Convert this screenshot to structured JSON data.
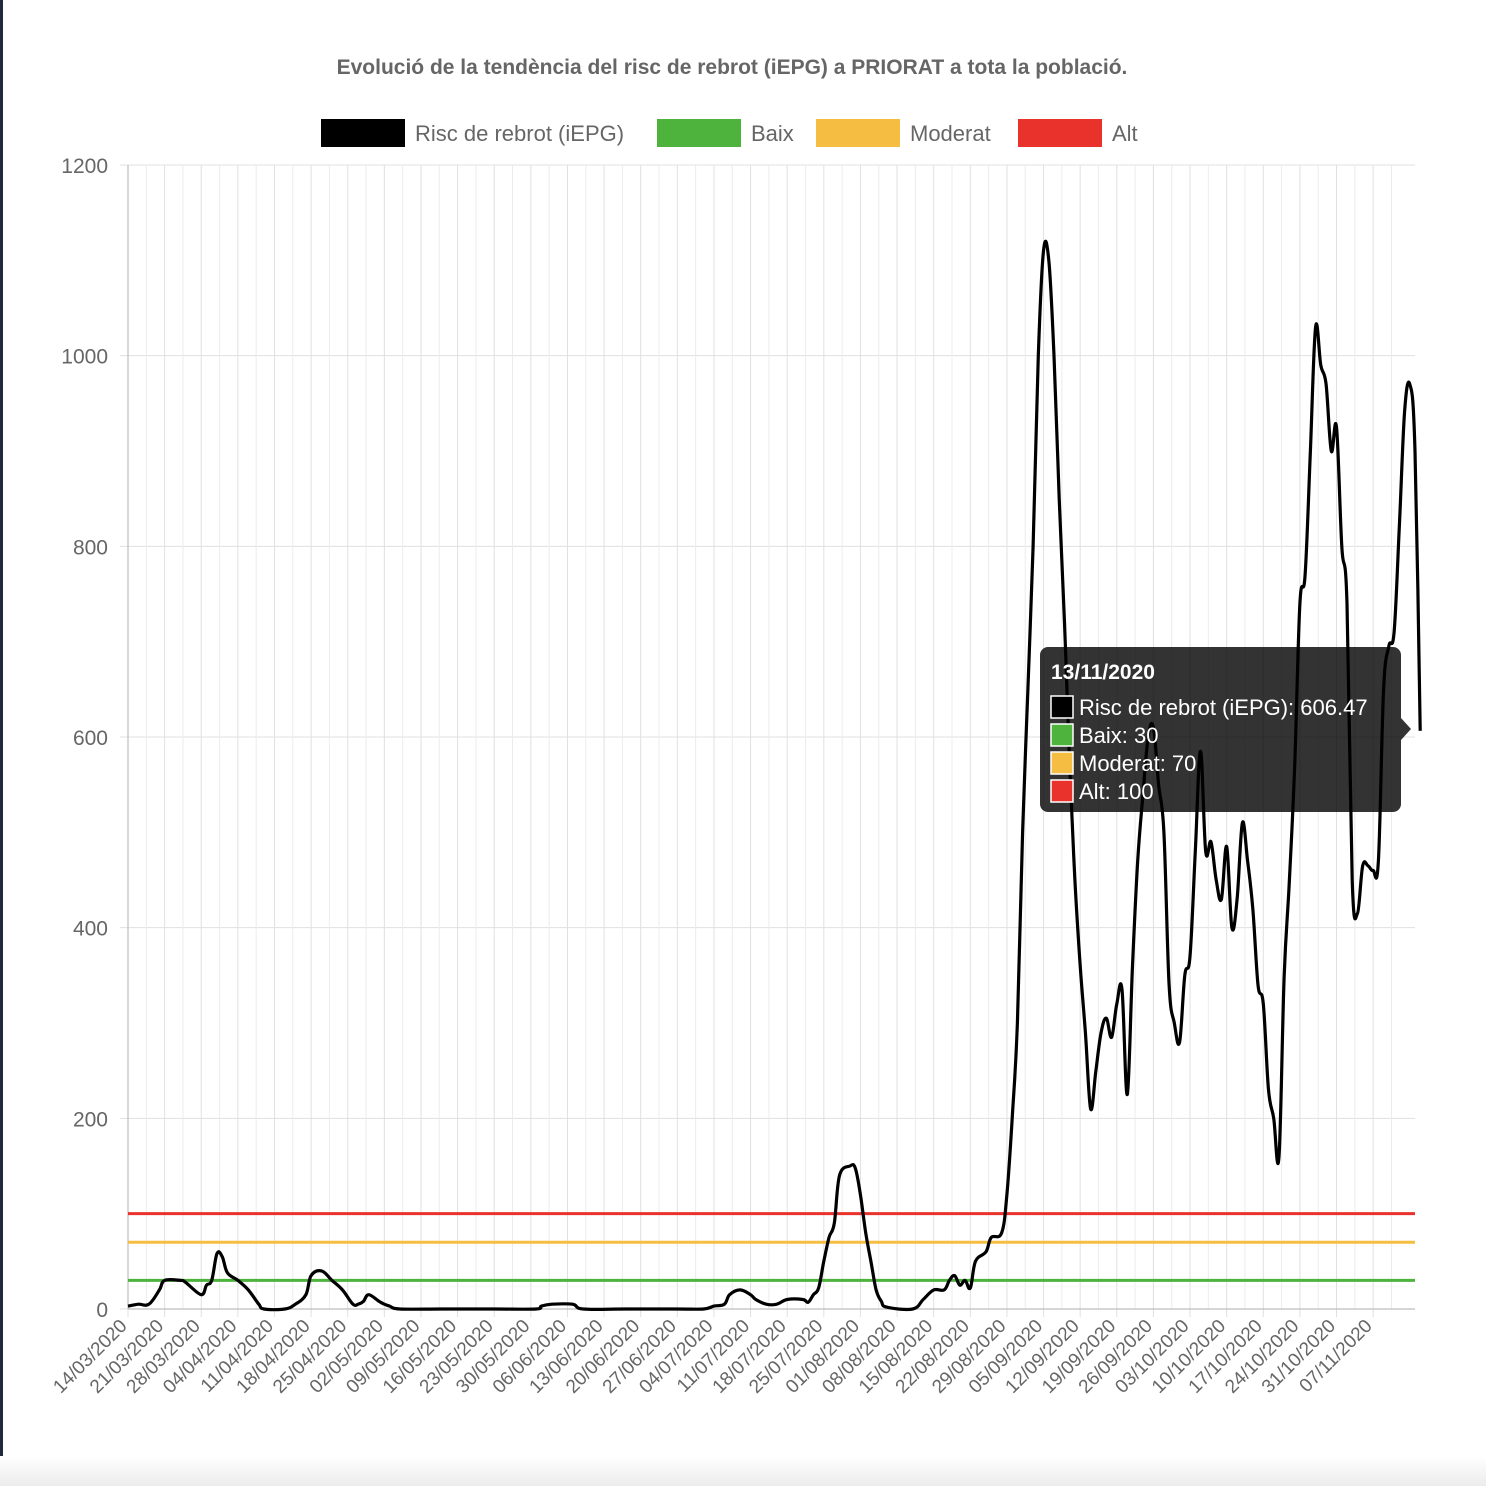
{
  "chart_data": {
    "type": "line",
    "title": "Evolució de la tendència del risc de rebrot (iEPG) a PRIORAT a tota la població.",
    "ylim": [
      0,
      1200
    ],
    "y_ticks": [
      "0",
      "200",
      "400",
      "600",
      "800",
      "1000",
      "1200"
    ],
    "x_ticks": [
      "14/03/2020",
      "21/03/2020",
      "28/03/2020",
      "04/04/2020",
      "11/04/2020",
      "18/04/2020",
      "25/04/2020",
      "02/05/2020",
      "09/05/2020",
      "16/05/2020",
      "23/05/2020",
      "30/05/2020",
      "06/06/2020",
      "13/06/2020",
      "20/06/2020",
      "27/06/2020",
      "04/07/2020",
      "11/07/2020",
      "18/07/2020",
      "25/07/2020",
      "01/08/2020",
      "08/08/2020",
      "15/08/2020",
      "22/08/2020",
      "29/08/2020",
      "05/09/2020",
      "12/09/2020",
      "19/09/2020",
      "26/09/2020",
      "03/10/2020",
      "10/10/2020",
      "17/10/2020",
      "24/10/2020",
      "31/10/2020",
      "07/11/2020"
    ],
    "num_days": 246,
    "legend": [
      {
        "label": "Risc de rebrot (iEPG)",
        "color": "#000000"
      },
      {
        "label": "Baix",
        "color": "#4db33d"
      },
      {
        "label": "Moderat",
        "color": "#f5bd41"
      },
      {
        "label": "Alt",
        "color": "#e9322b"
      }
    ],
    "thresholds": [
      {
        "name": "Baix",
        "value": 30,
        "color": "#4db33d"
      },
      {
        "name": "Moderat",
        "value": 70,
        "color": "#f5bd41"
      },
      {
        "name": "Alt",
        "value": 100,
        "color": "#e9322b"
      }
    ],
    "series": [
      {
        "name": "Risc de rebrot (iEPG)",
        "color": "#000000",
        "points": [
          [
            0,
            3
          ],
          [
            2,
            5
          ],
          [
            4,
            5
          ],
          [
            6,
            20
          ],
          [
            7,
            30
          ],
          [
            10,
            30
          ],
          [
            11,
            28
          ],
          [
            14,
            15
          ],
          [
            15,
            25
          ],
          [
            16,
            30
          ],
          [
            17,
            58
          ],
          [
            18,
            55
          ],
          [
            19,
            38
          ],
          [
            21,
            30
          ],
          [
            23,
            20
          ],
          [
            25,
            5
          ],
          [
            26,
            0
          ],
          [
            30,
            0
          ],
          [
            32,
            5
          ],
          [
            34,
            15
          ],
          [
            35,
            35
          ],
          [
            37,
            40
          ],
          [
            39,
            30
          ],
          [
            41,
            20
          ],
          [
            43,
            5
          ],
          [
            44,
            5
          ],
          [
            45,
            8
          ],
          [
            46,
            15
          ],
          [
            48,
            8
          ],
          [
            49,
            5
          ],
          [
            50,
            3
          ],
          [
            52,
            0
          ],
          [
            60,
            0
          ],
          [
            70,
            0
          ],
          [
            78,
            0
          ],
          [
            79,
            3
          ],
          [
            81,
            5
          ],
          [
            85,
            5
          ],
          [
            87,
            0
          ],
          [
            95,
            0
          ],
          [
            105,
            0
          ],
          [
            110,
            0
          ],
          [
            112,
            3
          ],
          [
            114,
            5
          ],
          [
            115,
            15
          ],
          [
            117,
            20
          ],
          [
            119,
            15
          ],
          [
            120,
            10
          ],
          [
            122,
            5
          ],
          [
            124,
            5
          ],
          [
            126,
            10
          ],
          [
            129,
            10
          ],
          [
            130,
            7
          ],
          [
            131,
            15
          ],
          [
            132,
            22
          ],
          [
            133,
            50
          ],
          [
            134,
            75
          ],
          [
            135,
            90
          ],
          [
            136,
            140
          ],
          [
            138,
            150
          ],
          [
            139,
            148
          ],
          [
            140,
            120
          ],
          [
            141,
            80
          ],
          [
            142,
            50
          ],
          [
            143,
            20
          ],
          [
            144,
            8
          ],
          [
            145,
            2
          ],
          [
            150,
            0
          ],
          [
            152,
            10
          ],
          [
            154,
            20
          ],
          [
            156,
            20
          ],
          [
            157,
            30
          ],
          [
            158,
            35
          ],
          [
            159,
            25
          ],
          [
            160,
            30
          ],
          [
            161,
            22
          ],
          [
            162,
            50
          ],
          [
            164,
            60
          ],
          [
            165,
            75
          ],
          [
            167,
            80
          ],
          [
            168,
            120
          ],
          [
            169,
            200
          ],
          [
            170,
            300
          ],
          [
            171,
            500
          ],
          [
            172,
            650
          ],
          [
            173,
            800
          ],
          [
            174,
            1000
          ],
          [
            175,
            1110
          ],
          [
            176,
            1100
          ],
          [
            177,
            1000
          ],
          [
            178,
            850
          ],
          [
            179,
            720
          ],
          [
            180,
            570
          ],
          [
            181,
            450
          ],
          [
            182,
            360
          ],
          [
            183,
            290
          ],
          [
            184,
            210
          ],
          [
            185,
            250
          ],
          [
            186,
            290
          ],
          [
            187,
            305
          ],
          [
            188,
            285
          ],
          [
            189,
            320
          ],
          [
            190,
            335
          ],
          [
            191,
            225
          ],
          [
            192,
            360
          ],
          [
            193,
            470
          ],
          [
            194,
            540
          ],
          [
            195,
            600
          ],
          [
            196,
            610
          ],
          [
            197,
            550
          ],
          [
            198,
            500
          ],
          [
            199,
            340
          ],
          [
            200,
            300
          ],
          [
            201,
            280
          ],
          [
            202,
            350
          ],
          [
            203,
            370
          ],
          [
            204,
            480
          ],
          [
            205,
            585
          ],
          [
            206,
            480
          ],
          [
            207,
            490
          ],
          [
            208,
            450
          ],
          [
            209,
            430
          ],
          [
            210,
            485
          ],
          [
            211,
            400
          ],
          [
            212,
            430
          ],
          [
            213,
            510
          ],
          [
            214,
            470
          ],
          [
            215,
            420
          ],
          [
            216,
            340
          ],
          [
            217,
            320
          ],
          [
            218,
            230
          ],
          [
            219,
            200
          ],
          [
            220,
            160
          ],
          [
            221,
            350
          ],
          [
            222,
            450
          ],
          [
            223,
            570
          ],
          [
            224,
            740
          ],
          [
            225,
            770
          ],
          [
            226,
            900
          ],
          [
            227,
            1030
          ],
          [
            228,
            990
          ],
          [
            229,
            970
          ],
          [
            230,
            900
          ],
          [
            231,
            925
          ],
          [
            232,
            800
          ],
          [
            233,
            740
          ],
          [
            234,
            450
          ],
          [
            235,
            415
          ],
          [
            236,
            465
          ],
          [
            237,
            465
          ],
          [
            238,
            460
          ],
          [
            239,
            470
          ],
          [
            240,
            650
          ],
          [
            241,
            695
          ],
          [
            242,
            710
          ],
          [
            243,
            820
          ],
          [
            244,
            940
          ],
          [
            245,
            970
          ],
          [
            246,
            900
          ],
          [
            247,
            606.47
          ]
        ]
      }
    ],
    "tooltip": {
      "date": "13/11/2020",
      "lines": [
        "Risc de rebrot (iEPG): 606.47",
        "Baix: 30",
        "Moderat: 70",
        "Alt: 100"
      ],
      "colors": [
        "#000000",
        "#4db33d",
        "#f5bd41",
        "#e9322b"
      ]
    }
  }
}
